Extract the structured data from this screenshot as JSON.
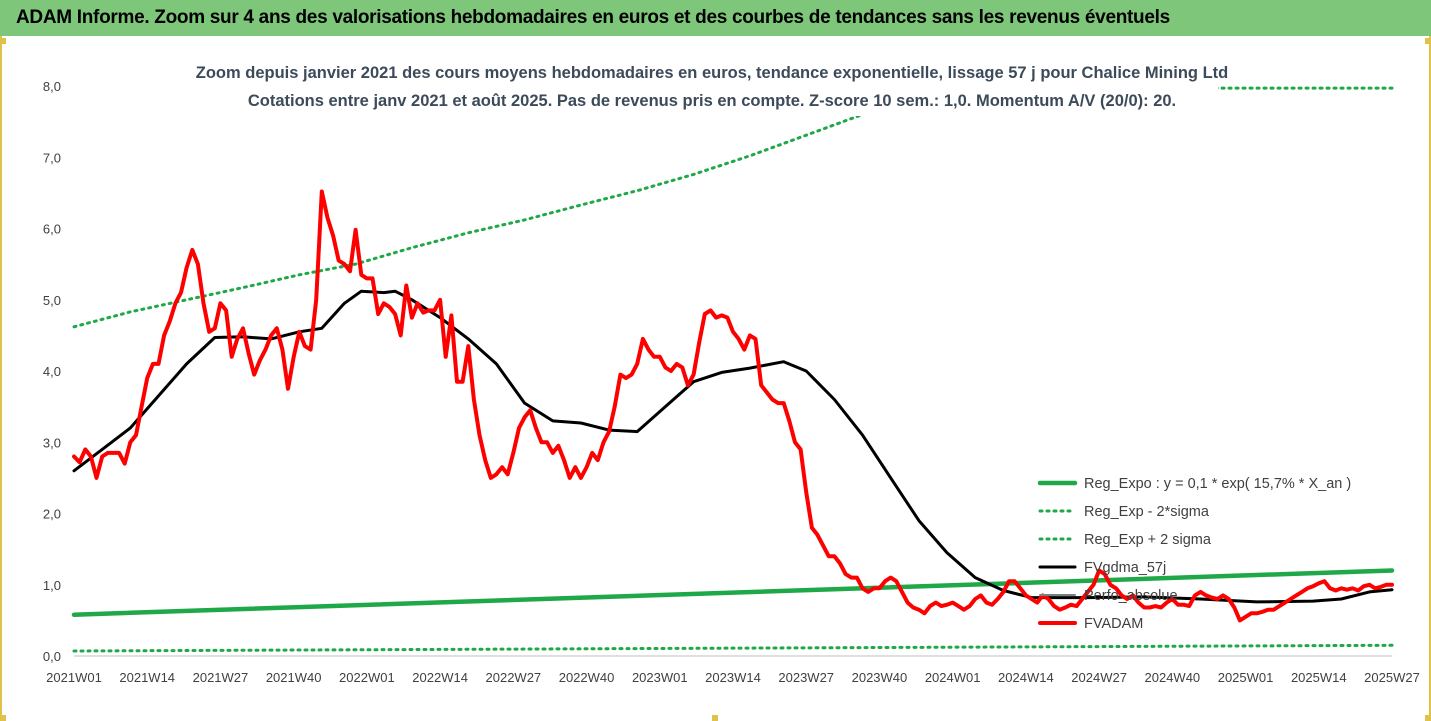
{
  "header": {
    "banner": "ADAM Informe. Zoom sur 4 ans des valorisations hebdomadaires en euros et des courbes de tendances sans les revenus éventuels"
  },
  "colors": {
    "banner_bg": "#7dc67a",
    "frame_border": "#e0c24a",
    "reg_expo": "#1fa847",
    "reg_sigma": "#1fa847",
    "fvgdma": "#000000",
    "perfo": "#7f7f7f",
    "fvadam": "#ff0000"
  },
  "chart_data": {
    "type": "line",
    "title": "Zoom depuis janvier 2021 des cours moyens hebdomadaires en euros, tendance exponentielle, lissage 57 j pour Chalice Mining Ltd",
    "subtitle": "Cotations entre janv 2021 et août 2025.  Pas de revenus pris en compte. Z-score 10 sem.: 1,0. Momentum A/V (20/0): 20.",
    "ylim": [
      0,
      8
    ],
    "y_ticks": [
      "0,0",
      "1,0",
      "2,0",
      "3,0",
      "4,0",
      "5,0",
      "6,0",
      "7,0",
      "8,0"
    ],
    "x_ticks": [
      "2021W01",
      "2021W14",
      "2021W27",
      "2021W40",
      "2022W01",
      "2022W14",
      "2022W27",
      "2022W40",
      "2023W01",
      "2023W14",
      "2023W27",
      "2023W40",
      "2024W01",
      "2024W14",
      "2024W27",
      "2024W40",
      "2025W01",
      "2025W14",
      "2025W27"
    ],
    "legend_position": "right",
    "grid": false,
    "series": [
      {
        "name": "Reg_Expo : y = 0,1 * exp( 15,7% *  X_an )",
        "style": "solid",
        "points": [
          [
            0,
            0.58
          ],
          [
            234,
            1.2
          ]
        ]
      },
      {
        "name": "Reg_Exp - 2*sigma",
        "style": "dotted",
        "points": [
          [
            0,
            0.07
          ],
          [
            234,
            0.15
          ]
        ]
      },
      {
        "name": "Reg_Exp + 2 sigma",
        "style": "dotted",
        "points": [
          [
            0,
            4.62
          ],
          [
            10,
            4.83
          ],
          [
            20,
            5.0
          ],
          [
            30,
            5.17
          ],
          [
            40,
            5.35
          ],
          [
            50,
            5.5
          ],
          [
            60,
            5.73
          ],
          [
            70,
            5.94
          ],
          [
            80,
            6.12
          ],
          [
            90,
            6.33
          ],
          [
            100,
            6.53
          ],
          [
            110,
            6.76
          ],
          [
            120,
            7.02
          ],
          [
            130,
            7.31
          ],
          [
            140,
            7.6
          ],
          [
            150,
            7.97
          ],
          [
            234,
            7.97
          ]
        ]
      },
      {
        "name": "FVgdma_57j",
        "style": "solid",
        "points": [
          [
            0,
            2.6
          ],
          [
            5,
            2.9
          ],
          [
            10,
            3.2
          ],
          [
            15,
            3.65
          ],
          [
            20,
            4.1
          ],
          [
            25,
            4.47
          ],
          [
            30,
            4.48
          ],
          [
            35,
            4.45
          ],
          [
            40,
            4.55
          ],
          [
            44,
            4.6
          ],
          [
            48,
            4.95
          ],
          [
            51,
            5.12
          ],
          [
            55,
            5.1
          ],
          [
            57,
            5.12
          ],
          [
            60,
            5.0
          ],
          [
            65,
            4.75
          ],
          [
            70,
            4.45
          ],
          [
            75,
            4.1
          ],
          [
            80,
            3.55
          ],
          [
            85,
            3.3
          ],
          [
            90,
            3.27
          ],
          [
            95,
            3.17
          ],
          [
            100,
            3.15
          ],
          [
            105,
            3.5
          ],
          [
            110,
            3.85
          ],
          [
            115,
            3.98
          ],
          [
            120,
            4.04
          ],
          [
            126,
            4.13
          ],
          [
            130,
            4.0
          ],
          [
            135,
            3.6
          ],
          [
            140,
            3.1
          ],
          [
            145,
            2.5
          ],
          [
            150,
            1.9
          ],
          [
            155,
            1.45
          ],
          [
            160,
            1.1
          ],
          [
            165,
            0.92
          ],
          [
            170,
            0.82
          ],
          [
            180,
            0.82
          ],
          [
            190,
            0.83
          ],
          [
            200,
            0.8
          ],
          [
            210,
            0.76
          ],
          [
            220,
            0.77
          ],
          [
            225,
            0.8
          ],
          [
            230,
            0.9
          ],
          [
            234,
            0.93
          ]
        ]
      },
      {
        "name": "Perfo_absolue",
        "style": "solid",
        "points": []
      },
      {
        "name": "FVADAM",
        "style": "solid",
        "points": [
          [
            0,
            2.8
          ],
          [
            1,
            2.72
          ],
          [
            2,
            2.9
          ],
          [
            3,
            2.8
          ],
          [
            4,
            2.5
          ],
          [
            5,
            2.8
          ],
          [
            6,
            2.85
          ],
          [
            7,
            2.85
          ],
          [
            8,
            2.85
          ],
          [
            9,
            2.7
          ],
          [
            10,
            3.0
          ],
          [
            11,
            3.1
          ],
          [
            12,
            3.5
          ],
          [
            13,
            3.9
          ],
          [
            14,
            4.1
          ],
          [
            15,
            4.1
          ],
          [
            16,
            4.5
          ],
          [
            17,
            4.7
          ],
          [
            18,
            4.95
          ],
          [
            19,
            5.1
          ],
          [
            20,
            5.45
          ],
          [
            21,
            5.7
          ],
          [
            22,
            5.5
          ],
          [
            23,
            4.95
          ],
          [
            24,
            4.55
          ],
          [
            25,
            4.6
          ],
          [
            26,
            4.95
          ],
          [
            27,
            4.85
          ],
          [
            28,
            4.2
          ],
          [
            29,
            4.45
          ],
          [
            30,
            4.6
          ],
          [
            31,
            4.25
          ],
          [
            32,
            3.95
          ],
          [
            33,
            4.15
          ],
          [
            34,
            4.3
          ],
          [
            35,
            4.5
          ],
          [
            36,
            4.6
          ],
          [
            37,
            4.3
          ],
          [
            38,
            3.75
          ],
          [
            39,
            4.2
          ],
          [
            40,
            4.55
          ],
          [
            41,
            4.35
          ],
          [
            42,
            4.3
          ],
          [
            43,
            5.0
          ],
          [
            44,
            6.52
          ],
          [
            45,
            6.15
          ],
          [
            46,
            5.9
          ],
          [
            47,
            5.55
          ],
          [
            48,
            5.5
          ],
          [
            49,
            5.4
          ],
          [
            50,
            5.98
          ],
          [
            51,
            5.35
          ],
          [
            52,
            5.3
          ],
          [
            53,
            5.3
          ],
          [
            54,
            4.8
          ],
          [
            55,
            4.95
          ],
          [
            56,
            4.9
          ],
          [
            57,
            4.8
          ],
          [
            58,
            4.5
          ],
          [
            59,
            5.2
          ],
          [
            60,
            4.75
          ],
          [
            61,
            4.95
          ],
          [
            62,
            4.82
          ],
          [
            63,
            4.85
          ],
          [
            64,
            4.85
          ],
          [
            65,
            5.0
          ],
          [
            66,
            4.2
          ],
          [
            67,
            4.78
          ],
          [
            68,
            3.85
          ],
          [
            69,
            3.85
          ],
          [
            70,
            4.35
          ],
          [
            71,
            3.6
          ],
          [
            72,
            3.1
          ],
          [
            73,
            2.75
          ],
          [
            74,
            2.5
          ],
          [
            75,
            2.55
          ],
          [
            76,
            2.65
          ],
          [
            77,
            2.55
          ],
          [
            78,
            2.85
          ],
          [
            79,
            3.2
          ],
          [
            80,
            3.35
          ],
          [
            81,
            3.45
          ],
          [
            82,
            3.2
          ],
          [
            83,
            3.0
          ],
          [
            84,
            3.0
          ],
          [
            85,
            2.85
          ],
          [
            86,
            2.95
          ],
          [
            87,
            2.75
          ],
          [
            88,
            2.5
          ],
          [
            89,
            2.65
          ],
          [
            90,
            2.5
          ],
          [
            91,
            2.65
          ],
          [
            92,
            2.85
          ],
          [
            93,
            2.75
          ],
          [
            94,
            3.0
          ],
          [
            95,
            3.15
          ],
          [
            96,
            3.5
          ],
          [
            97,
            3.95
          ],
          [
            98,
            3.9
          ],
          [
            99,
            3.95
          ],
          [
            100,
            4.1
          ],
          [
            101,
            4.45
          ],
          [
            102,
            4.3
          ],
          [
            103,
            4.2
          ],
          [
            104,
            4.2
          ],
          [
            105,
            4.05
          ],
          [
            106,
            4.0
          ],
          [
            107,
            4.1
          ],
          [
            108,
            4.05
          ],
          [
            109,
            3.8
          ],
          [
            110,
            3.95
          ],
          [
            111,
            4.4
          ],
          [
            112,
            4.8
          ],
          [
            113,
            4.85
          ],
          [
            114,
            4.75
          ],
          [
            115,
            4.78
          ],
          [
            116,
            4.75
          ],
          [
            117,
            4.55
          ],
          [
            118,
            4.45
          ],
          [
            119,
            4.3
          ],
          [
            120,
            4.5
          ],
          [
            121,
            4.45
          ],
          [
            122,
            3.8
          ],
          [
            123,
            3.7
          ],
          [
            124,
            3.6
          ],
          [
            125,
            3.55
          ],
          [
            126,
            3.55
          ],
          [
            127,
            3.3
          ],
          [
            128,
            3.0
          ],
          [
            129,
            2.9
          ],
          [
            130,
            2.3
          ],
          [
            131,
            1.8
          ],
          [
            132,
            1.7
          ],
          [
            133,
            1.55
          ],
          [
            134,
            1.4
          ],
          [
            135,
            1.4
          ],
          [
            136,
            1.3
          ],
          [
            137,
            1.15
          ],
          [
            138,
            1.1
          ],
          [
            139,
            1.1
          ],
          [
            140,
            0.95
          ],
          [
            141,
            0.9
          ],
          [
            142,
            0.95
          ],
          [
            143,
            0.95
          ],
          [
            144,
            1.05
          ],
          [
            145,
            1.1
          ],
          [
            146,
            1.05
          ],
          [
            147,
            0.9
          ],
          [
            148,
            0.75
          ],
          [
            149,
            0.68
          ],
          [
            150,
            0.65
          ],
          [
            151,
            0.6
          ],
          [
            152,
            0.7
          ],
          [
            153,
            0.75
          ],
          [
            154,
            0.7
          ],
          [
            155,
            0.72
          ],
          [
            156,
            0.75
          ],
          [
            157,
            0.7
          ],
          [
            158,
            0.65
          ],
          [
            159,
            0.7
          ],
          [
            160,
            0.8
          ],
          [
            161,
            0.85
          ],
          [
            162,
            0.75
          ],
          [
            163,
            0.72
          ],
          [
            164,
            0.8
          ],
          [
            165,
            0.9
          ],
          [
            166,
            1.05
          ],
          [
            167,
            1.05
          ],
          [
            168,
            0.95
          ],
          [
            169,
            0.85
          ],
          [
            170,
            0.8
          ],
          [
            171,
            0.75
          ],
          [
            172,
            0.85
          ],
          [
            173,
            0.8
          ],
          [
            174,
            0.7
          ],
          [
            175,
            0.65
          ],
          [
            176,
            0.68
          ],
          [
            177,
            0.72
          ],
          [
            178,
            0.7
          ],
          [
            179,
            0.8
          ],
          [
            180,
            0.9
          ],
          [
            181,
            1.0
          ],
          [
            182,
            1.2
          ],
          [
            183,
            1.15
          ],
          [
            184,
            1.0
          ],
          [
            185,
            0.95
          ],
          [
            186,
            0.85
          ],
          [
            187,
            0.8
          ],
          [
            188,
            0.85
          ],
          [
            189,
            0.75
          ],
          [
            190,
            0.68
          ],
          [
            191,
            0.68
          ],
          [
            192,
            0.7
          ],
          [
            193,
            0.68
          ],
          [
            194,
            0.75
          ],
          [
            195,
            0.8
          ],
          [
            196,
            0.72
          ],
          [
            197,
            0.72
          ],
          [
            198,
            0.7
          ],
          [
            199,
            0.85
          ],
          [
            200,
            0.9
          ],
          [
            201,
            0.85
          ],
          [
            202,
            0.82
          ],
          [
            203,
            0.8
          ],
          [
            204,
            0.85
          ],
          [
            205,
            0.8
          ],
          [
            206,
            0.68
          ],
          [
            207,
            0.5
          ],
          [
            208,
            0.55
          ],
          [
            209,
            0.6
          ],
          [
            210,
            0.6
          ],
          [
            211,
            0.62
          ],
          [
            212,
            0.65
          ],
          [
            213,
            0.65
          ],
          [
            214,
            0.7
          ],
          [
            215,
            0.75
          ],
          [
            216,
            0.8
          ],
          [
            217,
            0.85
          ],
          [
            218,
            0.9
          ],
          [
            219,
            0.95
          ],
          [
            220,
            0.98
          ],
          [
            221,
            1.02
          ],
          [
            222,
            1.05
          ],
          [
            223,
            0.95
          ],
          [
            224,
            0.92
          ],
          [
            225,
            0.95
          ],
          [
            226,
            0.93
          ],
          [
            227,
            0.95
          ],
          [
            228,
            0.92
          ],
          [
            229,
            0.98
          ],
          [
            230,
            1.0
          ],
          [
            231,
            0.95
          ],
          [
            232,
            0.97
          ],
          [
            233,
            1.0
          ],
          [
            234,
            1.0
          ]
        ]
      }
    ]
  }
}
